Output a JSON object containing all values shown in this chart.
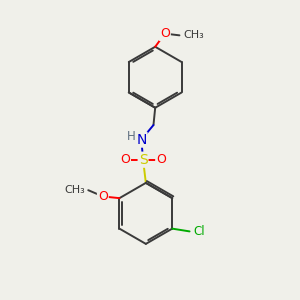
{
  "background_color": "#f0f0ea",
  "bond_color": "#3a3a3a",
  "bond_width": 1.4,
  "atom_colors": {
    "O": "#ff0000",
    "N": "#0000cc",
    "S": "#cccc00",
    "Cl": "#00aa00",
    "H": "#607080",
    "C": "#3a3a3a"
  },
  "figsize": [
    3.0,
    3.0
  ],
  "dpi": 100
}
